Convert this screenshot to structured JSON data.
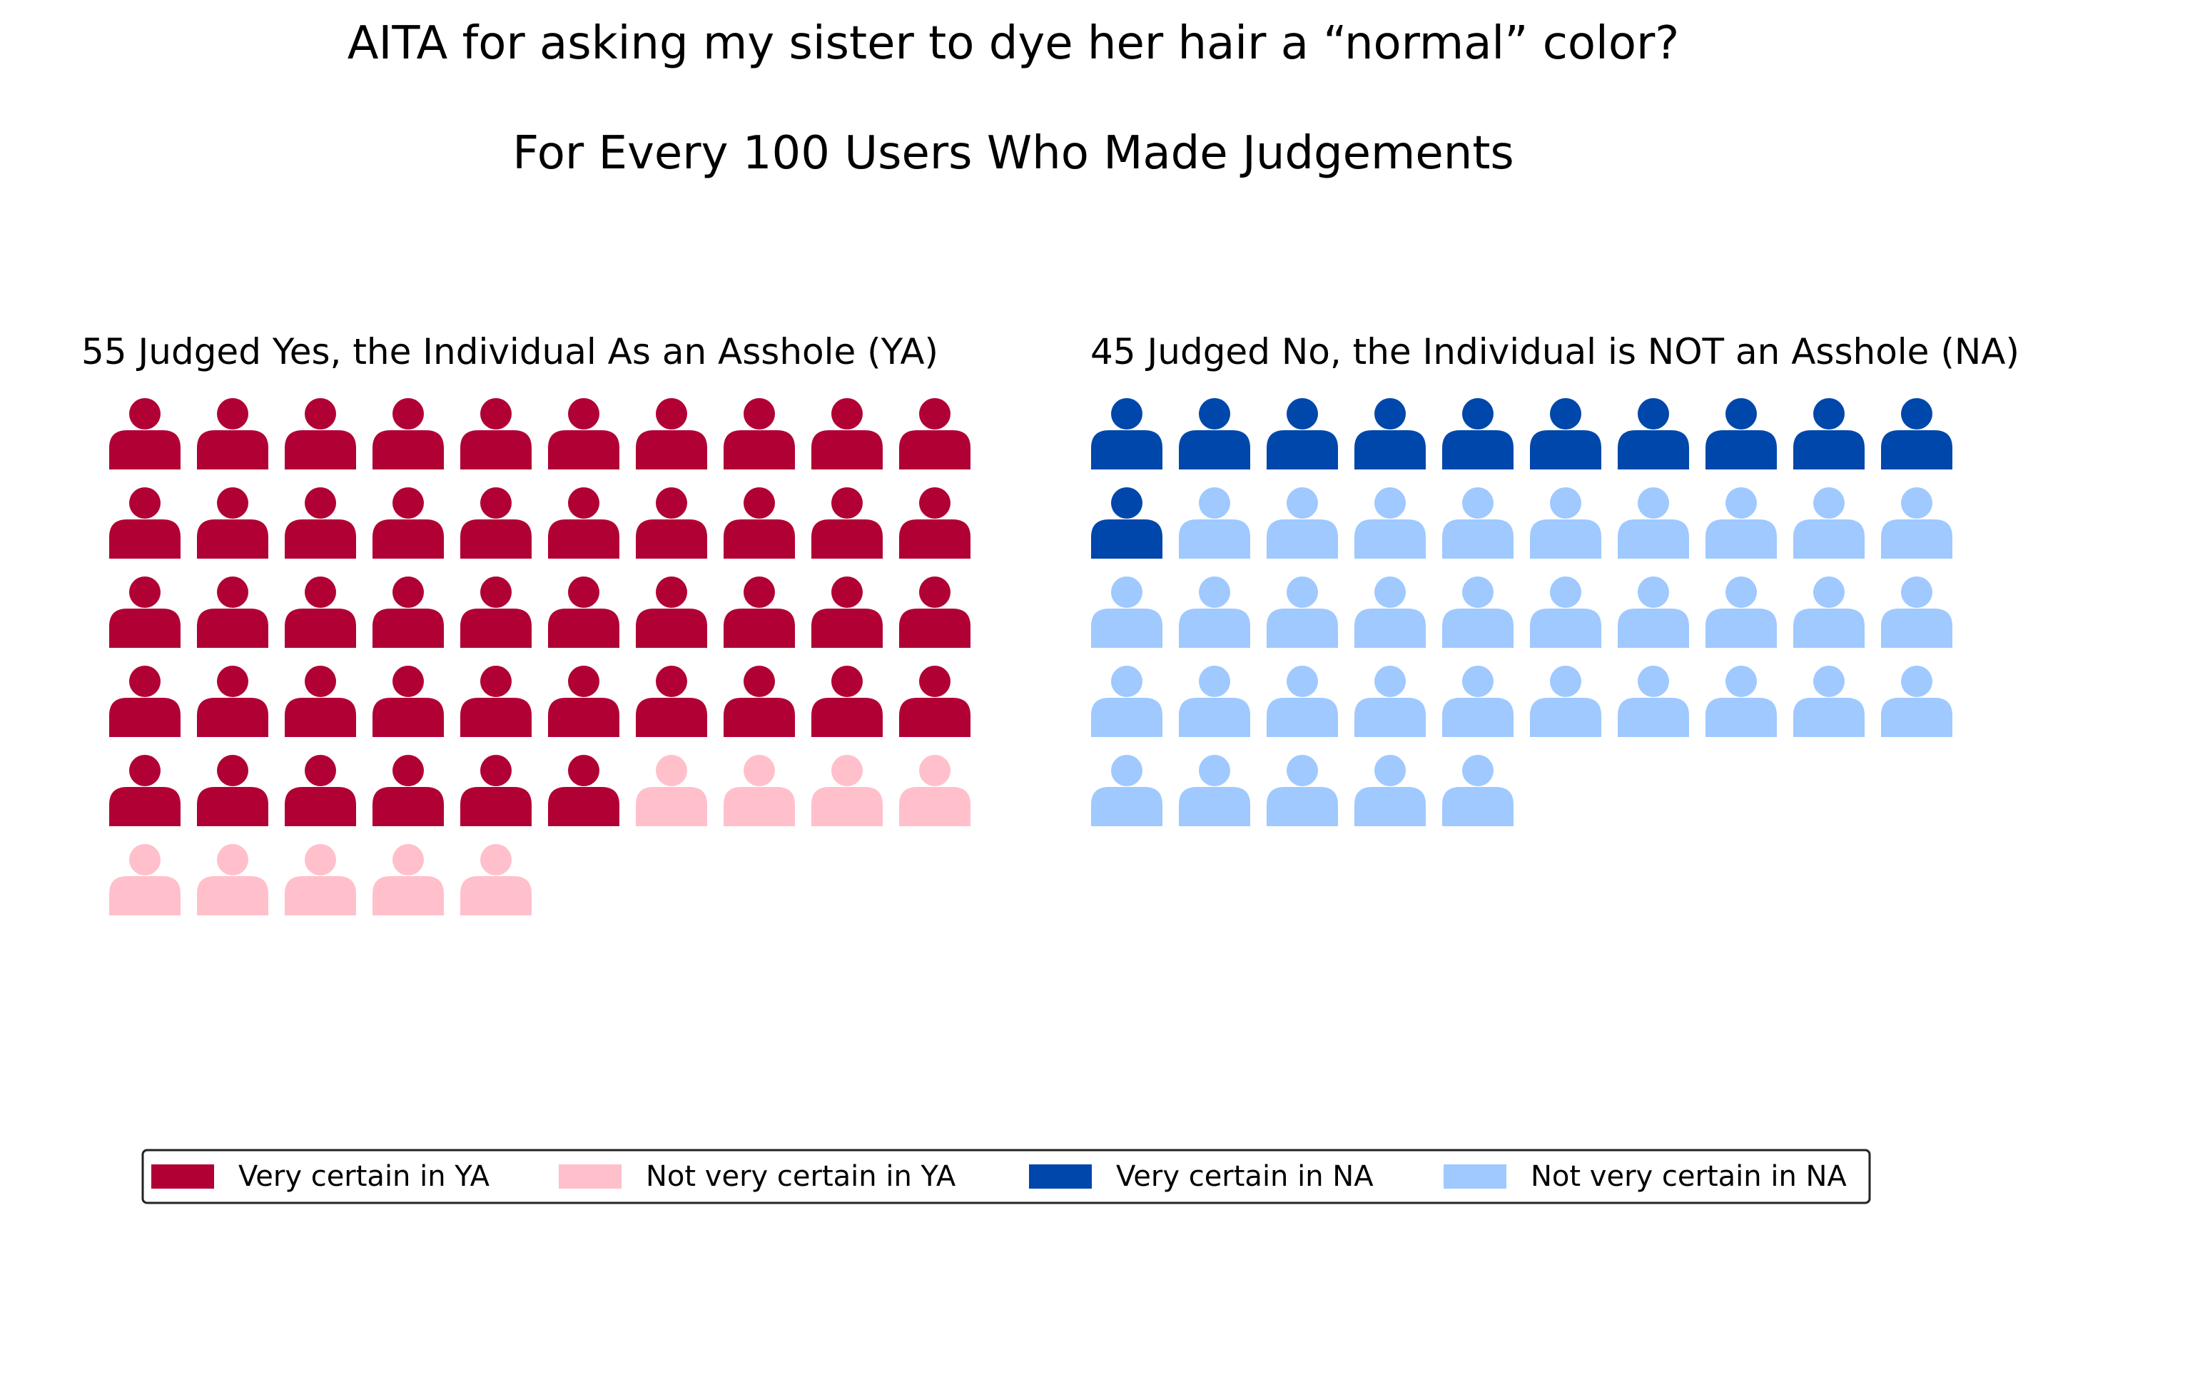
{
  "chart_data": {
    "type": "pictogram",
    "title": "AITA for asking my sister to dye her hair a “normal” color?",
    "subtitle": "For Every 100 Users Who Made Judgements",
    "panels": [
      {
        "title": "55 Judged Yes, the Individual As an Asshole (YA)",
        "total": 55,
        "segments": [
          {
            "label": "Very certain in YA",
            "count": 46,
            "color": "#b10034"
          },
          {
            "label": "Not very certain in YA",
            "count": 9,
            "color": "#ffc0cb"
          }
        ]
      },
      {
        "title": "45 Judged No, the Individual is NOT an Asshole (NA)",
        "total": 45,
        "segments": [
          {
            "label": "Very certain in NA",
            "count": 11,
            "color": "#0047ab"
          },
          {
            "label": "Not very certain in NA",
            "count": 34,
            "color": "#9fc9ff"
          }
        ]
      }
    ],
    "icons_per_row": 10,
    "icon": "person-icon",
    "legend": [
      {
        "label": "Very certain in YA",
        "color": "#b10034"
      },
      {
        "label": "Not very certain in YA",
        "color": "#ffc0cb"
      },
      {
        "label": "Very certain in NA",
        "color": "#0047ab"
      },
      {
        "label": "Not very certain in NA",
        "color": "#9fc9ff"
      }
    ],
    "legend_position": "bottom"
  }
}
